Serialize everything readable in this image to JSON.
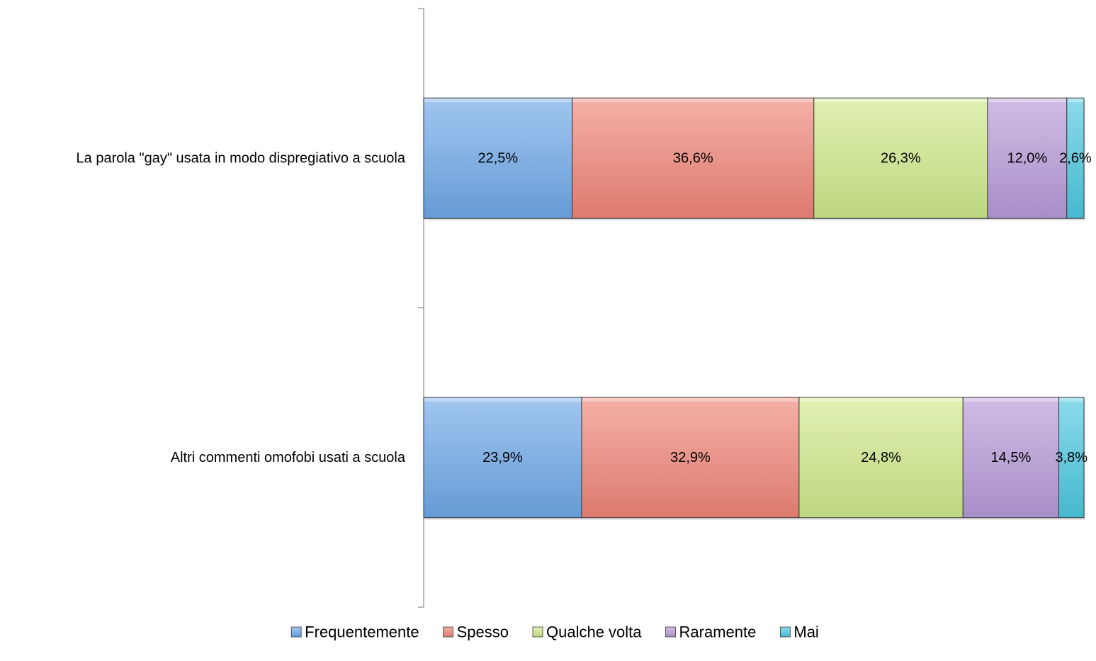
{
  "chart_data": {
    "type": "bar",
    "orientation": "horizontal",
    "stacked": "percent",
    "title": "",
    "xlabel": "",
    "ylabel": "",
    "xlim": [
      0,
      100
    ],
    "grid": false,
    "legend_position": "bottom",
    "categories": [
      "La parola \"gay\" usata in modo dispregiativo a scuola",
      "Altri commenti omofobi usati a scuola"
    ],
    "series": [
      {
        "name": "Frequentemente",
        "color": "#6fa8e8",
        "values": [
          22.5,
          23.9
        ],
        "labels": [
          "22,5%",
          "23,9%"
        ]
      },
      {
        "name": "Spesso",
        "color": "#f08578",
        "values": [
          36.6,
          32.9
        ],
        "labels": [
          "36,6%",
          "32,9%"
        ]
      },
      {
        "name": "Qualche volta",
        "color": "#cfe98a",
        "values": [
          26.3,
          24.8
        ],
        "labels": [
          "26,3%",
          "24,8%"
        ]
      },
      {
        "name": "Raramente",
        "color": "#b79ad8",
        "values": [
          12.0,
          14.5
        ],
        "labels": [
          "12,0%",
          "14,5%"
        ]
      },
      {
        "name": "Mai",
        "color": "#4cc8e0",
        "values": [
          2.6,
          3.8
        ],
        "labels": [
          "2,6%",
          "3,8%"
        ]
      }
    ]
  }
}
